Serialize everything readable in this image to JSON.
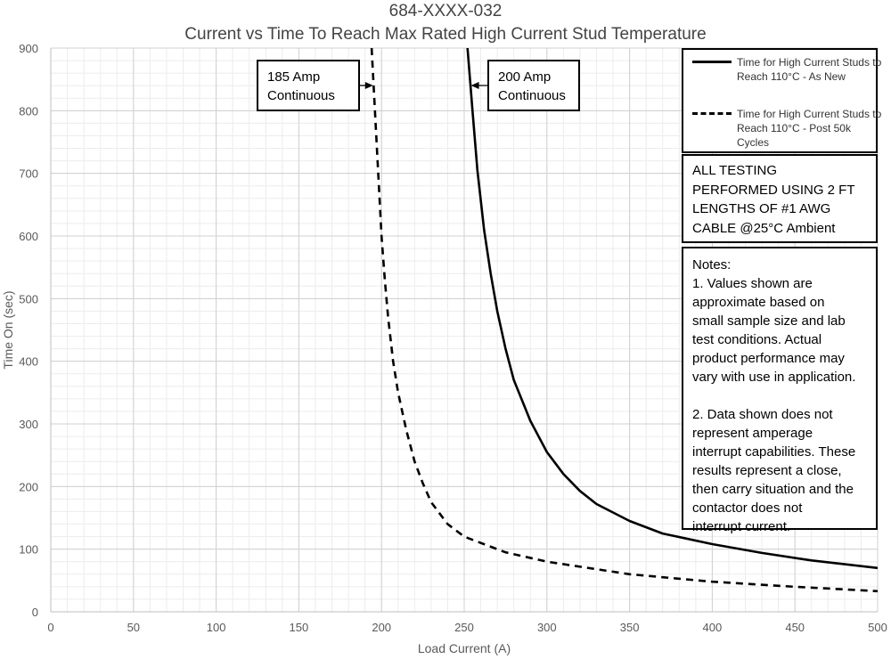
{
  "title": "684-XXXX-032",
  "subtitle": "Current vs Time To Reach Max Rated High Current Stud Temperature",
  "chart_data": {
    "type": "line",
    "xlabel": "Load Current (A)",
    "ylabel": "Time On (sec)",
    "xlim": [
      0,
      500
    ],
    "ylim": [
      0,
      900
    ],
    "xticks": [
      0,
      50,
      100,
      150,
      200,
      250,
      300,
      350,
      400,
      450,
      500
    ],
    "yticks": [
      0,
      100,
      200,
      300,
      400,
      500,
      600,
      700,
      800,
      900
    ],
    "grid": true,
    "legend_position": "top-right",
    "series": [
      {
        "name": "Time for High Current Studs to Reach 110°C - As New",
        "style": "solid",
        "x": [
          252,
          255,
          258,
          262,
          266,
          270,
          275,
          280,
          290,
          300,
          310,
          320,
          330,
          350,
          370,
          400,
          430,
          460,
          500
        ],
        "y": [
          900,
          800,
          705,
          610,
          540,
          480,
          420,
          370,
          305,
          255,
          220,
          193,
          172,
          145,
          125,
          108,
          94,
          82,
          70
        ]
      },
      {
        "name": "Time for High Current Studs to Reach 110°C - Post 50k Cycles",
        "style": "dashed",
        "x": [
          194,
          196,
          198,
          200,
          202,
          204,
          207,
          210,
          215,
          220,
          225,
          230,
          240,
          250,
          275,
          300,
          350,
          400,
          450,
          500
        ],
        "y": [
          900,
          800,
          700,
          600,
          530,
          470,
          400,
          350,
          290,
          240,
          205,
          175,
          140,
          120,
          95,
          80,
          60,
          48,
          40,
          33
        ]
      }
    ],
    "annotations": [
      {
        "text": [
          "185 Amp",
          "Continuous"
        ],
        "arrow_to": [
          196,
          840
        ]
      },
      {
        "text": [
          "200 Amp",
          "Continuous"
        ],
        "arrow_to": [
          253,
          840
        ]
      }
    ]
  },
  "notes": {
    "testing": [
      "ALL TESTING",
      "PERFORMED USING 2 FT",
      "LENGTHS OF #1 AWG",
      "CABLE @25°C Ambient"
    ],
    "header": "Notes:",
    "note1": [
      "1. Values shown are",
      "approximate based on",
      "small sample size and lab",
      "test conditions.  Actual",
      "product performance may",
      "vary with use in application."
    ],
    "note2": [
      "2. Data shown does not",
      "represent amperage",
      "interrupt capabilities. These",
      "results represent a close,",
      "then carry situation and the",
      "contactor does not",
      "interrupt current."
    ]
  },
  "colors": {
    "axis_text": "#595959",
    "grid_major": "#d0d0d0",
    "grid_minor": "#ececec",
    "line": "#000000"
  }
}
